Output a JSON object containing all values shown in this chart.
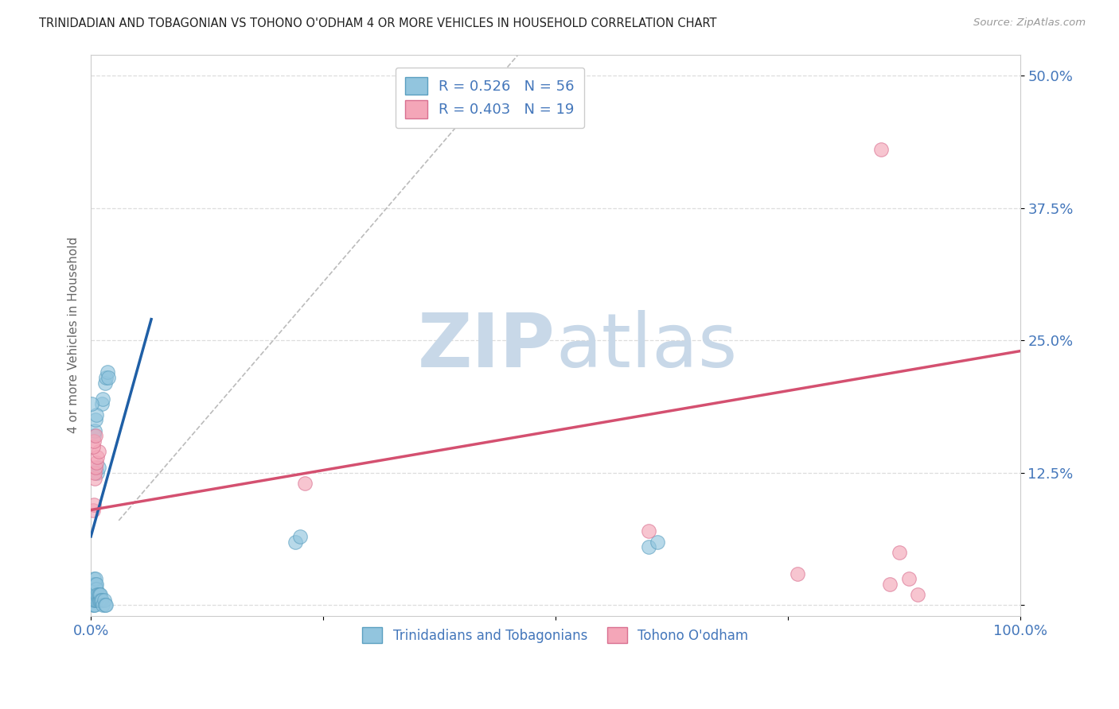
{
  "title": "TRINIDADIAN AND TOBAGONIAN VS TOHONO O'ODHAM 4 OR MORE VEHICLES IN HOUSEHOLD CORRELATION CHART",
  "source": "Source: ZipAtlas.com",
  "ylabel": "4 or more Vehicles in Household",
  "xlim": [
    0.0,
    1.0
  ],
  "ylim": [
    -0.01,
    0.52
  ],
  "xticks": [
    0.0,
    0.25,
    0.5,
    0.75,
    1.0
  ],
  "xtick_labels": [
    "0.0%",
    "",
    "",
    "",
    "100.0%"
  ],
  "yticks": [
    0.0,
    0.125,
    0.25,
    0.375,
    0.5
  ],
  "ytick_labels": [
    "",
    "12.5%",
    "25.0%",
    "37.5%",
    "50.0%"
  ],
  "blue_color": "#92c5de",
  "blue_edge_color": "#5a9fc0",
  "blue_line_color": "#1f5fa6",
  "pink_color": "#f4a6b8",
  "pink_edge_color": "#d97090",
  "pink_line_color": "#d45070",
  "dashed_line_color": "#bbbbbb",
  "R_blue": 0.526,
  "N_blue": 56,
  "R_pink": 0.403,
  "N_pink": 19,
  "legend_label_blue": "Trinidadians and Tobagonians",
  "legend_label_pink": "Tohono O'odham",
  "blue_scatter": [
    [
      0.001,
      0.005
    ],
    [
      0.001,
      0.01
    ],
    [
      0.002,
      0.0
    ],
    [
      0.002,
      0.005
    ],
    [
      0.002,
      0.01
    ],
    [
      0.002,
      0.015
    ],
    [
      0.003,
      0.0
    ],
    [
      0.003,
      0.005
    ],
    [
      0.003,
      0.008
    ],
    [
      0.003,
      0.012
    ],
    [
      0.003,
      0.02
    ],
    [
      0.003,
      0.025
    ],
    [
      0.004,
      0.0
    ],
    [
      0.004,
      0.005
    ],
    [
      0.004,
      0.01
    ],
    [
      0.004,
      0.015
    ],
    [
      0.004,
      0.02
    ],
    [
      0.005,
      0.005
    ],
    [
      0.005,
      0.01
    ],
    [
      0.005,
      0.015
    ],
    [
      0.005,
      0.02
    ],
    [
      0.005,
      0.025
    ],
    [
      0.006,
      0.01
    ],
    [
      0.006,
      0.015
    ],
    [
      0.006,
      0.02
    ],
    [
      0.007,
      0.005
    ],
    [
      0.007,
      0.01
    ],
    [
      0.008,
      0.005
    ],
    [
      0.008,
      0.01
    ],
    [
      0.009,
      0.005
    ],
    [
      0.009,
      0.01
    ],
    [
      0.01,
      0.005
    ],
    [
      0.01,
      0.01
    ],
    [
      0.011,
      0.005
    ],
    [
      0.012,
      0.005
    ],
    [
      0.013,
      0.0
    ],
    [
      0.014,
      0.005
    ],
    [
      0.015,
      0.0
    ],
    [
      0.016,
      0.0
    ],
    [
      0.007,
      0.125
    ],
    [
      0.008,
      0.13
    ],
    [
      0.012,
      0.19
    ],
    [
      0.013,
      0.195
    ],
    [
      0.015,
      0.21
    ],
    [
      0.016,
      0.215
    ],
    [
      0.018,
      0.22
    ],
    [
      0.019,
      0.215
    ],
    [
      0.003,
      0.16
    ],
    [
      0.004,
      0.165
    ],
    [
      0.005,
      0.175
    ],
    [
      0.006,
      0.18
    ],
    [
      0.001,
      0.19
    ],
    [
      0.22,
      0.06
    ],
    [
      0.225,
      0.065
    ],
    [
      0.6,
      0.055
    ],
    [
      0.61,
      0.06
    ]
  ],
  "pink_scatter": [
    [
      0.002,
      0.09
    ],
    [
      0.003,
      0.095
    ],
    [
      0.004,
      0.12
    ],
    [
      0.004,
      0.125
    ],
    [
      0.005,
      0.13
    ],
    [
      0.006,
      0.135
    ],
    [
      0.007,
      0.14
    ],
    [
      0.008,
      0.145
    ],
    [
      0.002,
      0.15
    ],
    [
      0.003,
      0.155
    ],
    [
      0.005,
      0.16
    ],
    [
      0.23,
      0.115
    ],
    [
      0.6,
      0.07
    ],
    [
      0.76,
      0.03
    ],
    [
      0.85,
      0.43
    ],
    [
      0.86,
      0.02
    ],
    [
      0.87,
      0.05
    ],
    [
      0.88,
      0.025
    ],
    [
      0.89,
      0.01
    ]
  ],
  "blue_line": {
    "x1": 0.0,
    "y1": 0.065,
    "x2": 0.065,
    "y2": 0.27
  },
  "pink_line": {
    "x1": 0.0,
    "y1": 0.09,
    "x2": 1.0,
    "y2": 0.24
  },
  "dash_line": {
    "x1": 0.03,
    "y1": 0.08,
    "x2": 0.46,
    "y2": 0.52
  },
  "watermark_zip": "ZIP",
  "watermark_atlas": "atlas",
  "watermark_color": "#c8d8e8",
  "background_color": "#ffffff",
  "grid_color": "#dddddd",
  "tick_color": "#4477bb",
  "spine_color": "#cccccc"
}
